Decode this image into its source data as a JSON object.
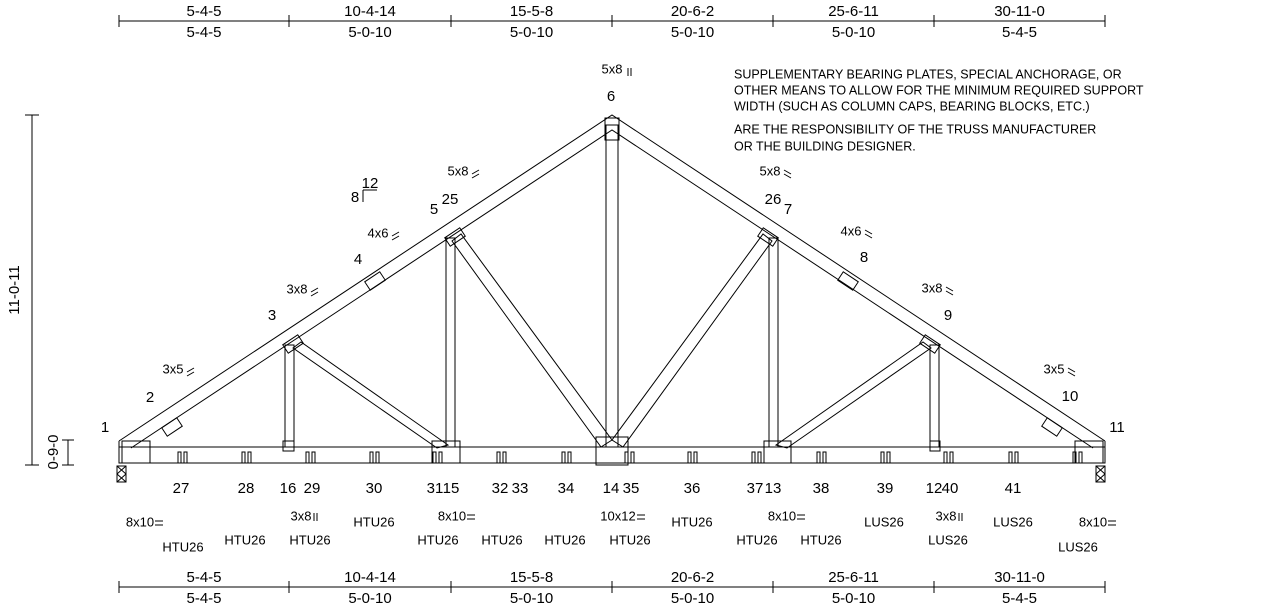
{
  "dimensions_top": {
    "cumulative": [
      "5-4-5",
      "10-4-14",
      "15-5-8",
      "20-6-2",
      "25-6-11",
      "30-11-0"
    ],
    "segments": [
      "5-4-5",
      "5-0-10",
      "5-0-10",
      "5-0-10",
      "5-0-10",
      "5-4-5"
    ]
  },
  "dimensions_bottom": {
    "cumulative": [
      "5-4-5",
      "10-4-14",
      "15-5-8",
      "20-6-2",
      "25-6-11",
      "30-11-0"
    ],
    "segments": [
      "5-4-5",
      "5-0-10",
      "5-0-10",
      "5-0-10",
      "5-0-10",
      "5-4-5"
    ]
  },
  "vertical_dimensions": [
    "11-0-11",
    "0-9-0"
  ],
  "pitch": {
    "rise": "8",
    "run": "12"
  },
  "note": [
    "SUPPLEMENTARY BEARING PLATES, SPECIAL ANCHORAGE, OR",
    "OTHER MEANS TO ALLOW FOR THE MINIMUM REQUIRED SUPPORT",
    "WIDTH (SUCH AS COLUMN CAPS, BEARING BLOCKS, ETC.)",
    "ARE THE RESPONSIBILITY OF THE TRUSS MANUFACTURER",
    "OR THE BUILDING DESIGNER."
  ],
  "top_joints": [
    "1",
    "2",
    "3",
    "4",
    "5",
    "25",
    "6",
    "26",
    "7",
    "8",
    "9",
    "10",
    "11"
  ],
  "top_plates": [
    "3x5",
    "3x8",
    "4x6",
    "5x8",
    "5x8",
    "5x8",
    "4x6",
    "3x8",
    "3x5"
  ],
  "bottom_joints": [
    "27",
    "28",
    "16",
    "29",
    "30",
    "31",
    "15",
    "32",
    "33",
    "34",
    "14",
    "35",
    "36",
    "37",
    "13",
    "38",
    "39",
    "12",
    "40",
    "41"
  ],
  "bottom_plates": [
    "8x10",
    "3x8",
    "8x10",
    "10x12",
    "8x10",
    "3x8",
    "8x10"
  ],
  "hangers": [
    "HTU26",
    "HTU26",
    "HTU26",
    "HTU26",
    "HTU26",
    "HTU26",
    "HTU26",
    "HTU26",
    "HTU26",
    "HTU26",
    "HTU26",
    "LUS26",
    "LUS26",
    "LUS26",
    "LUS26"
  ]
}
